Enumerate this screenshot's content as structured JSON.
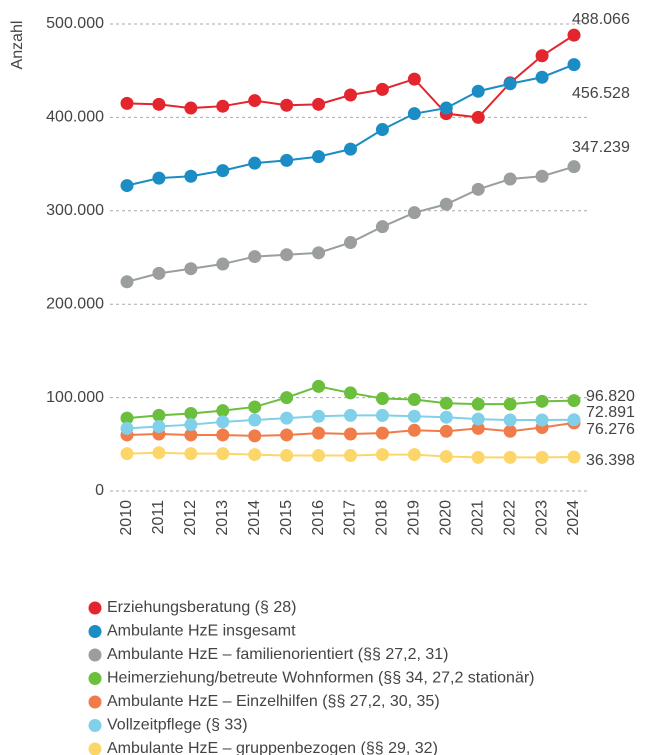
{
  "chart_data": {
    "type": "line",
    "y_label": "Anzahl",
    "categories": [
      "2010",
      "2011",
      "2012",
      "2013",
      "2014",
      "2015",
      "2016",
      "2017",
      "2018",
      "2019",
      "2020",
      "2021",
      "2022",
      "2023",
      "2024"
    ],
    "ylim": [
      0,
      500000
    ],
    "yticks": [
      0,
      {
        "value": 100000,
        "label": "100.000"
      },
      {
        "value": 200000,
        "label": "200.000"
      },
      {
        "value": 300000,
        "label": "300.000"
      },
      {
        "value": 400000,
        "label": "400.000"
      },
      {
        "value": 500000,
        "label": "500.000"
      }
    ],
    "grid": true,
    "series": [
      {
        "name": "Erziehungsberatung (§ 28)",
        "color": "#e3262e",
        "values": [
          415000,
          414000,
          410000,
          412000,
          418000,
          413000,
          414000,
          424000,
          430000,
          441000,
          404000,
          400000,
          437000,
          466000,
          488066
        ],
        "value_labels": [
          null,
          null,
          null,
          null,
          null,
          null,
          null,
          null,
          null,
          null,
          null,
          null,
          null,
          null,
          "488.066"
        ]
      },
      {
        "name": "Ambulante HzE insgesamt",
        "color": "#1b8cc4",
        "values": [
          327000,
          335000,
          337000,
          343000,
          351000,
          354000,
          358000,
          366000,
          387000,
          404000,
          410000,
          428000,
          436000,
          443000,
          456528
        ],
        "value_labels": [
          null,
          null,
          null,
          null,
          null,
          null,
          null,
          null,
          null,
          null,
          null,
          null,
          null,
          null,
          "456.528"
        ]
      },
      {
        "name": "Ambulante HzE – familienorientiert (§§ 27,2, 31)",
        "color": "#9a9e9c",
        "values": [
          224000,
          233000,
          238000,
          243000,
          251000,
          253000,
          255000,
          266000,
          283000,
          298000,
          307000,
          323000,
          334000,
          337000,
          347239
        ],
        "value_labels": [
          null,
          null,
          null,
          null,
          null,
          null,
          null,
          null,
          null,
          null,
          null,
          null,
          null,
          null,
          "347.239"
        ]
      },
      {
        "name": "Heimerziehung/betreute Wohnformen (§§ 34, 27,2 stationär)",
        "color": "#6bbf3c",
        "values": [
          78000,
          81000,
          83000,
          86000,
          90000,
          100000,
          112000,
          105000,
          99000,
          98000,
          94000,
          93000,
          93000,
          96000,
          96820
        ],
        "value_labels": [
          null,
          null,
          null,
          null,
          null,
          null,
          null,
          null,
          null,
          null,
          null,
          null,
          null,
          null,
          "96.820"
        ]
      },
      {
        "name": "Ambulante HzE – Einzelhilfen (§§ 27,2, 30, 35)",
        "color": "#f07c4a",
        "values": [
          60000,
          61000,
          60000,
          60000,
          59000,
          60000,
          62000,
          61000,
          62000,
          65000,
          64000,
          67000,
          64000,
          68000,
          72891
        ],
        "value_labels": [
          null,
          null,
          null,
          null,
          null,
          null,
          null,
          null,
          null,
          null,
          null,
          null,
          null,
          null,
          "72.891"
        ]
      },
      {
        "name": "Vollzeitpflege (§ 33)",
        "color": "#7fd0e8",
        "values": [
          67000,
          69000,
          71000,
          74000,
          76000,
          78000,
          80000,
          81000,
          81000,
          80000,
          79000,
          77000,
          76000,
          76000,
          76276
        ],
        "value_labels": [
          null,
          null,
          null,
          null,
          null,
          null,
          null,
          null,
          null,
          null,
          null,
          null,
          null,
          null,
          "76.276"
        ]
      },
      {
        "name": "Ambulante HzE – gruppenbezogen (§§ 29, 32)",
        "color": "#fdd66a",
        "values": [
          40000,
          41000,
          40000,
          40000,
          39000,
          38000,
          38000,
          38000,
          39000,
          39000,
          37000,
          36000,
          36000,
          36000,
          36398
        ],
        "value_labels": [
          null,
          null,
          null,
          null,
          null,
          null,
          null,
          null,
          null,
          null,
          null,
          null,
          null,
          null,
          "36.398"
        ]
      }
    ]
  }
}
